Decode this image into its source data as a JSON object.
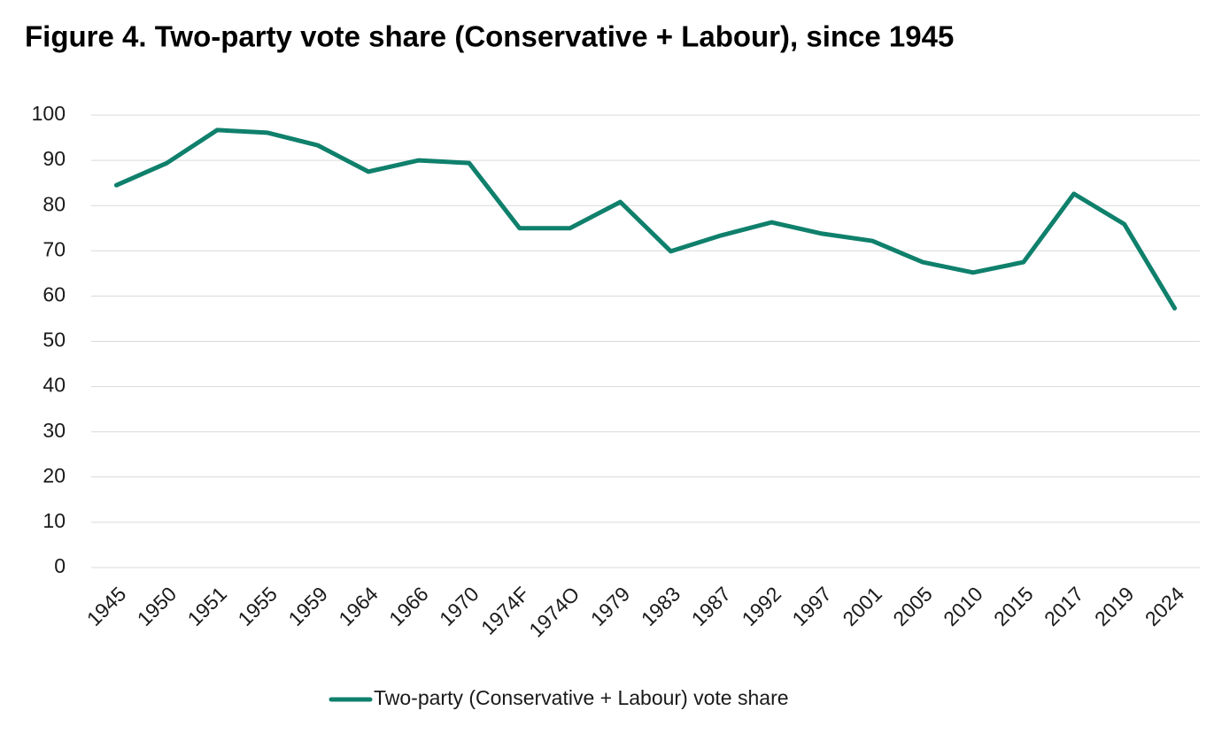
{
  "chart_data": {
    "type": "line",
    "title": "Figure 4. Two-party vote share (Conservative + Labour), since 1945",
    "categories": [
      "1945",
      "1950",
      "1951",
      "1955",
      "1959",
      "1964",
      "1966",
      "1970",
      "1974F",
      "1974O",
      "1979",
      "1983",
      "1987",
      "1992",
      "1997",
      "2001",
      "2005",
      "2010",
      "2015",
      "2017",
      "2019",
      "2024"
    ],
    "series": [
      {
        "name": "Two-party (Conservative + Labour) vote share",
        "color": "#0f806c",
        "values": [
          84.5,
          89.4,
          96.7,
          96.1,
          93.3,
          87.5,
          90.0,
          89.4,
          75.0,
          75.0,
          80.8,
          69.9,
          73.4,
          76.3,
          73.8,
          72.2,
          67.5,
          65.2,
          67.5,
          82.6,
          75.9,
          57.3
        ]
      }
    ],
    "ylim": [
      0,
      100
    ],
    "yticks": [
      0,
      10,
      20,
      30,
      40,
      50,
      60,
      70,
      80,
      90,
      100
    ],
    "grid": true,
    "legend": "bottom"
  }
}
